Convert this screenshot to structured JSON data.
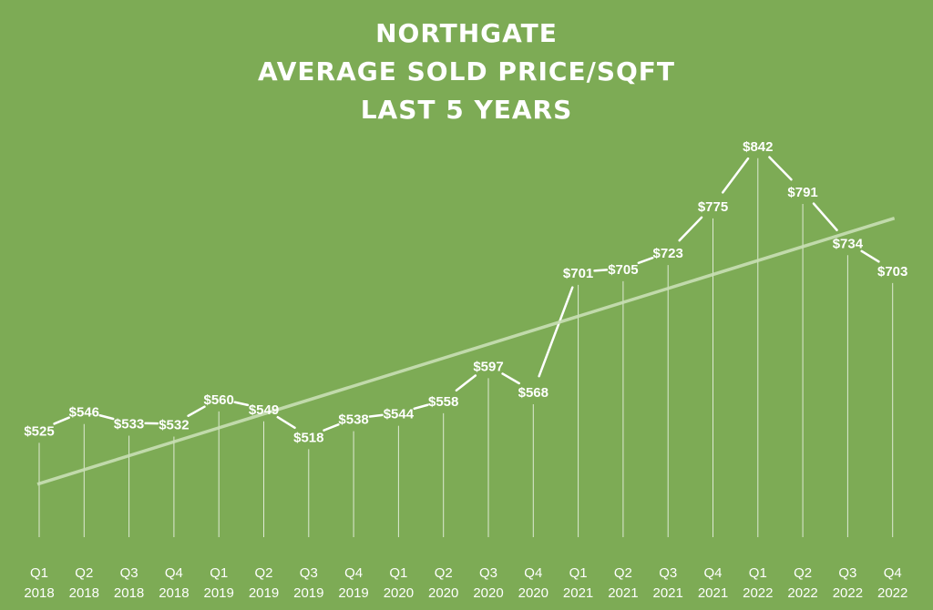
{
  "title_lines": [
    "NORTHGATE",
    "AVERAGE SOLD PRICE/SQFT",
    "LAST 5 YEARS"
  ],
  "colors": {
    "background": "#7dab55",
    "text": "#ffffff",
    "trendline": "#c9dfb5"
  },
  "chart_data": {
    "type": "line",
    "title": "NORTHGATE AVERAGE SOLD PRICE/SQFT LAST 5 YEARS",
    "categories": [
      [
        "Q1",
        "2018"
      ],
      [
        "Q2",
        "2018"
      ],
      [
        "Q3",
        "2018"
      ],
      [
        "Q4",
        "2018"
      ],
      [
        "Q1",
        "2019"
      ],
      [
        "Q2",
        "2019"
      ],
      [
        "Q3",
        "2019"
      ],
      [
        "Q4",
        "2019"
      ],
      [
        "Q1",
        "2020"
      ],
      [
        "Q2",
        "2020"
      ],
      [
        "Q3",
        "2020"
      ],
      [
        "Q4",
        "2020"
      ],
      [
        "Q1",
        "2021"
      ],
      [
        "Q2",
        "2021"
      ],
      [
        "Q3",
        "2021"
      ],
      [
        "Q4",
        "2021"
      ],
      [
        "Q1",
        "2022"
      ],
      [
        "Q2",
        "2022"
      ],
      [
        "Q3",
        "2022"
      ],
      [
        "Q4",
        "2022"
      ]
    ],
    "values": [
      525,
      546,
      533,
      532,
      560,
      549,
      518,
      538,
      544,
      558,
      597,
      568,
      701,
      705,
      723,
      775,
      842,
      791,
      734,
      703
    ],
    "data_labels": [
      "$525",
      "$546",
      "$533",
      "$532",
      "$560",
      "$549",
      "$518",
      "$538",
      "$544",
      "$558",
      "$597",
      "$568",
      "$701",
      "$705",
      "$723",
      "$775",
      "$842",
      "$791",
      "$734",
      "$703"
    ],
    "trendline": "linear",
    "ylim": [
      420,
      860
    ],
    "grid": false,
    "legend": "none"
  }
}
